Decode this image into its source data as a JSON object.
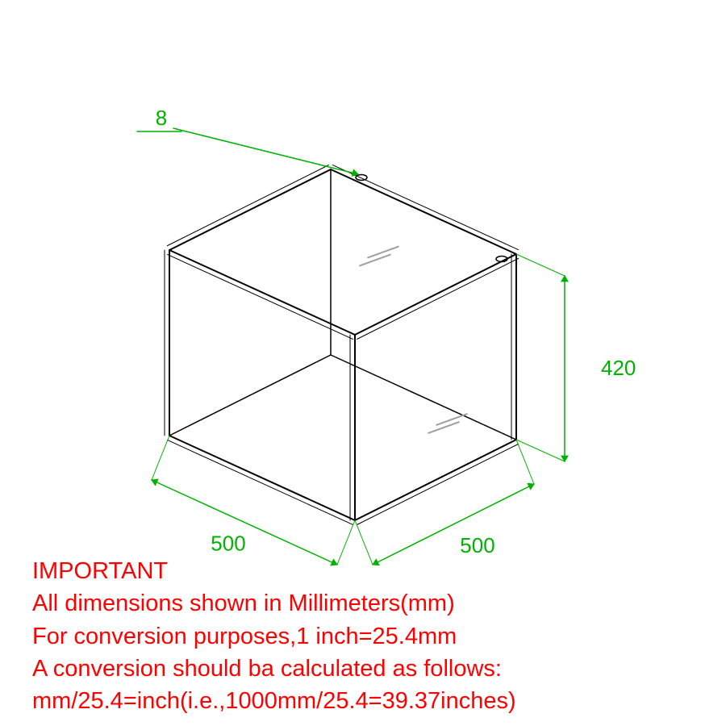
{
  "diagram": {
    "type": "isometric-frame",
    "line_color": "#000000",
    "line_width": 2,
    "glass_hatch_color": "#9aa0a6",
    "background_color": "#ffffff",
    "dimension_color": "#00b200",
    "dimension_fontsize": 26,
    "dimensions": {
      "width": "500",
      "depth": "500",
      "height": "420",
      "frame_thickness": "8"
    }
  },
  "note": {
    "color": "#ff0000",
    "fontsize": 29,
    "heading": "IMPORTANT",
    "line1": "All dimensions shown in Millimeters(mm)",
    "line2": "For conversion purposes,1 inch=25.4mm",
    "line3": "A conversion should ba calculated as follows:",
    "line4": "mm/25.4=inch(i.e.,1000mm/25.4=39.37inches)"
  }
}
